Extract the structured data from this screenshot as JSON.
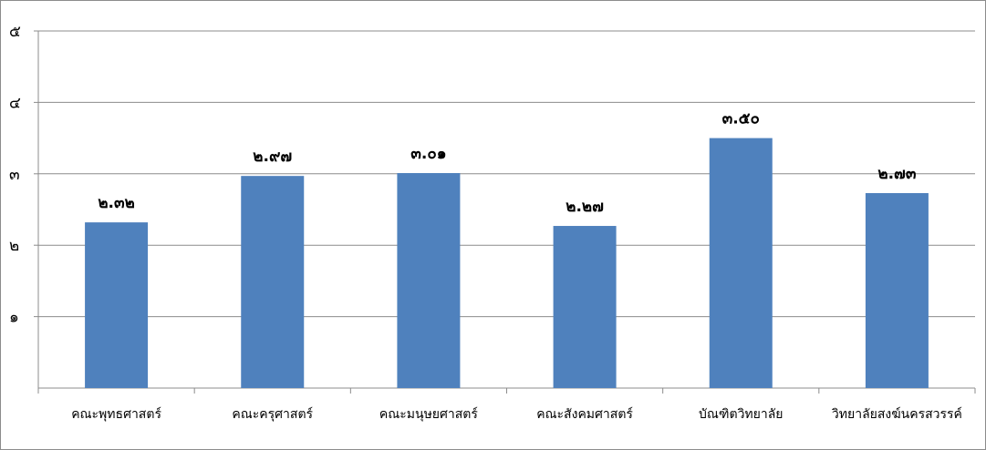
{
  "chart_data": {
    "type": "bar",
    "title": "",
    "xlabel": "",
    "ylabel": "",
    "ylim": [
      0,
      5
    ],
    "grid": true,
    "legend": "none",
    "categories": [
      "คณะพุทธศาสตร์",
      "คณะครุศาสตร์",
      "คณะมนุษยศาสตร์",
      "คณะสังคมศาสตร์",
      "บัณฑิตวิทยาลัย",
      "วิทยาลัยสงฆ์นครสวรรค์"
    ],
    "values": [
      2.32,
      2.97,
      3.01,
      2.27,
      3.5,
      2.73
    ],
    "value_labels": [
      "๒.๓๒",
      "๒.๙๗",
      "๓.๐๑",
      "๒.๒๗",
      "๓.๕๐",
      "๒.๗๓"
    ],
    "yticks": [
      1,
      2,
      3,
      4,
      5
    ],
    "ytick_labels": [
      "๑",
      "๒",
      "๓",
      "๔",
      "๕"
    ],
    "bar_color": "#4f81bd",
    "gridline_color": "#8c8c8c"
  }
}
